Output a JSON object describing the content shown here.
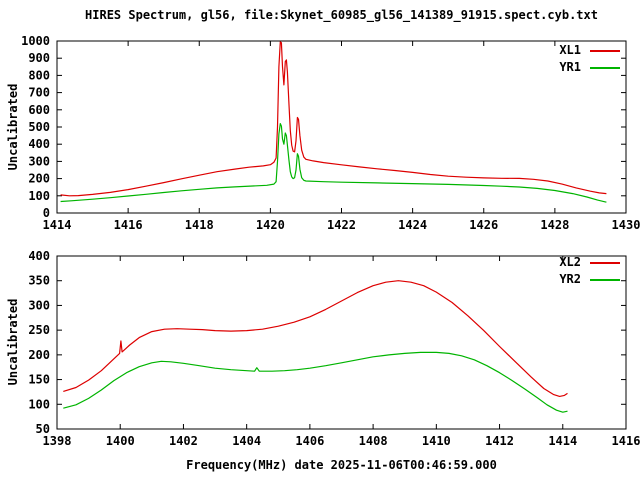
{
  "colors": {
    "axis": "#000000",
    "background": "#ffffff",
    "series_red": "#dd0000",
    "series_green": "#00b400"
  },
  "chart_data": {
    "type": "line",
    "title": "HIRES Spectrum, gl56, file:Skynet_60985_gl56_141389_91915.spect.cyb.txt",
    "xlabel": "Frequency(MHz) date 2025-11-06T00:46:59.000",
    "grid": false,
    "legend_position": "top-right-inside",
    "panels": [
      {
        "name": "top-spectrum",
        "ylabel": "Uncalibrated",
        "xlim": [
          1414,
          1430
        ],
        "ylim": [
          0,
          1000
        ],
        "xticks": [
          1414,
          1416,
          1418,
          1420,
          1422,
          1424,
          1426,
          1428,
          1430
        ],
        "yticks": [
          0,
          100,
          200,
          300,
          400,
          500,
          600,
          700,
          800,
          900,
          1000
        ],
        "legend": [
          {
            "name": "XL1",
            "color": "#dd0000"
          },
          {
            "name": "YR1",
            "color": "#00b400"
          }
        ],
        "series": [
          {
            "name": "XL1",
            "color": "#dd0000",
            "points": [
              [
                1414.1,
                105
              ],
              [
                1414.35,
                100
              ],
              [
                1414.6,
                101
              ],
              [
                1415.0,
                108
              ],
              [
                1415.5,
                120
              ],
              [
                1416.0,
                136
              ],
              [
                1416.5,
                156
              ],
              [
                1417.0,
                177
              ],
              [
                1417.5,
                199
              ],
              [
                1418.0,
                220
              ],
              [
                1418.5,
                240
              ],
              [
                1419.0,
                255
              ],
              [
                1419.4,
                266
              ],
              [
                1419.8,
                274
              ],
              [
                1420.0,
                281
              ],
              [
                1420.1,
                295
              ],
              [
                1420.16,
                320
              ],
              [
                1420.2,
                500
              ],
              [
                1420.24,
                850
              ],
              [
                1420.28,
                995
              ],
              [
                1420.31,
                990
              ],
              [
                1420.34,
                850
              ],
              [
                1420.38,
                745
              ],
              [
                1420.42,
                880
              ],
              [
                1420.45,
                890
              ],
              [
                1420.48,
                820
              ],
              [
                1420.52,
                640
              ],
              [
                1420.56,
                480
              ],
              [
                1420.6,
                395
              ],
              [
                1420.64,
                360
              ],
              [
                1420.68,
                355
              ],
              [
                1420.72,
                420
              ],
              [
                1420.76,
                555
              ],
              [
                1420.79,
                545
              ],
              [
                1420.83,
                450
              ],
              [
                1420.88,
                365
              ],
              [
                1420.94,
                325
              ],
              [
                1421.0,
                312
              ],
              [
                1421.2,
                303
              ],
              [
                1421.5,
                293
              ],
              [
                1422.0,
                280
              ],
              [
                1422.5,
                268
              ],
              [
                1423.0,
                257
              ],
              [
                1423.5,
                247
              ],
              [
                1424.0,
                236
              ],
              [
                1424.5,
                224
              ],
              [
                1425.0,
                214
              ],
              [
                1425.5,
                208
              ],
              [
                1426.0,
                204
              ],
              [
                1426.5,
                202
              ],
              [
                1427.0,
                201
              ],
              [
                1427.4,
                196
              ],
              [
                1427.8,
                186
              ],
              [
                1428.2,
                168
              ],
              [
                1428.6,
                146
              ],
              [
                1429.0,
                127
              ],
              [
                1429.25,
                117
              ],
              [
                1429.45,
                113
              ]
            ]
          },
          {
            "name": "YR1",
            "color": "#00b400",
            "points": [
              [
                1414.1,
                67
              ],
              [
                1414.4,
                71
              ],
              [
                1415.0,
                80
              ],
              [
                1415.5,
                89
              ],
              [
                1416.0,
                99
              ],
              [
                1416.5,
                109
              ],
              [
                1417.0,
                119
              ],
              [
                1417.5,
                129
              ],
              [
                1418.0,
                138
              ],
              [
                1418.5,
                146
              ],
              [
                1419.0,
                152
              ],
              [
                1419.5,
                157
              ],
              [
                1419.9,
                161
              ],
              [
                1420.1,
                168
              ],
              [
                1420.16,
                182
              ],
              [
                1420.2,
                300
              ],
              [
                1420.24,
                460
              ],
              [
                1420.28,
                520
              ],
              [
                1420.31,
                505
              ],
              [
                1420.34,
                430
              ],
              [
                1420.38,
                400
              ],
              [
                1420.42,
                465
              ],
              [
                1420.45,
                450
              ],
              [
                1420.48,
                395
              ],
              [
                1420.52,
                310
              ],
              [
                1420.56,
                240
              ],
              [
                1420.6,
                210
              ],
              [
                1420.64,
                200
              ],
              [
                1420.68,
                205
              ],
              [
                1420.72,
                250
              ],
              [
                1420.76,
                345
              ],
              [
                1420.79,
                330
              ],
              [
                1420.83,
                255
              ],
              [
                1420.88,
                205
              ],
              [
                1420.94,
                190
              ],
              [
                1421.0,
                186
              ],
              [
                1421.5,
                182
              ],
              [
                1422.0,
                179
              ],
              [
                1423.0,
                175
              ],
              [
                1424.0,
                171
              ],
              [
                1425.0,
                166
              ],
              [
                1426.0,
                160
              ],
              [
                1426.5,
                156
              ],
              [
                1427.0,
                151
              ],
              [
                1427.5,
                143
              ],
              [
                1428.0,
                131
              ],
              [
                1428.5,
                113
              ],
              [
                1428.9,
                93
              ],
              [
                1429.2,
                75
              ],
              [
                1429.45,
                63
              ]
            ]
          }
        ]
      },
      {
        "name": "bottom-spectrum",
        "ylabel": "Uncalibrated",
        "xlim": [
          1398,
          1416
        ],
        "ylim": [
          50,
          400
        ],
        "xticks": [
          1398,
          1400,
          1402,
          1404,
          1406,
          1408,
          1410,
          1412,
          1414,
          1416
        ],
        "yticks": [
          50,
          100,
          150,
          200,
          250,
          300,
          350,
          400
        ],
        "legend": [
          {
            "name": "XL2",
            "color": "#dd0000"
          },
          {
            "name": "YR2",
            "color": "#00b400"
          }
        ],
        "series": [
          {
            "name": "XL2",
            "color": "#dd0000",
            "points": [
              [
                1398.2,
                126
              ],
              [
                1398.6,
                134
              ],
              [
                1399.0,
                149
              ],
              [
                1399.4,
                168
              ],
              [
                1399.8,
                192
              ],
              [
                1399.98,
                203
              ],
              [
                1400.02,
                228
              ],
              [
                1400.06,
                206
              ],
              [
                1400.3,
                220
              ],
              [
                1400.6,
                235
              ],
              [
                1401.0,
                247
              ],
              [
                1401.4,
                252
              ],
              [
                1401.8,
                253
              ],
              [
                1402.2,
                252
              ],
              [
                1402.6,
                251
              ],
              [
                1403.0,
                249
              ],
              [
                1403.5,
                248
              ],
              [
                1404.0,
                249
              ],
              [
                1404.5,
                252
              ],
              [
                1405.0,
                258
              ],
              [
                1405.5,
                266
              ],
              [
                1406.0,
                277
              ],
              [
                1406.5,
                292
              ],
              [
                1407.0,
                309
              ],
              [
                1407.5,
                326
              ],
              [
                1408.0,
                340
              ],
              [
                1408.4,
                347
              ],
              [
                1408.8,
                350
              ],
              [
                1409.2,
                347
              ],
              [
                1409.6,
                340
              ],
              [
                1410.0,
                327
              ],
              [
                1410.5,
                306
              ],
              [
                1411.0,
                279
              ],
              [
                1411.5,
                249
              ],
              [
                1412.0,
                217
              ],
              [
                1412.5,
                186
              ],
              [
                1413.0,
                155
              ],
              [
                1413.4,
                132
              ],
              [
                1413.7,
                120
              ],
              [
                1413.9,
                116
              ],
              [
                1414.05,
                118
              ],
              [
                1414.15,
                122
              ]
            ]
          },
          {
            "name": "YR2",
            "color": "#00b400",
            "points": [
              [
                1398.2,
                92
              ],
              [
                1398.6,
                99
              ],
              [
                1399.0,
                112
              ],
              [
                1399.4,
                129
              ],
              [
                1399.8,
                148
              ],
              [
                1400.2,
                164
              ],
              [
                1400.6,
                176
              ],
              [
                1401.0,
                184
              ],
              [
                1401.3,
                187
              ],
              [
                1401.6,
                186
              ],
              [
                1402.0,
                183
              ],
              [
                1402.5,
                178
              ],
              [
                1403.0,
                173
              ],
              [
                1403.5,
                170
              ],
              [
                1404.0,
                168
              ],
              [
                1404.25,
                167
              ],
              [
                1404.32,
                174
              ],
              [
                1404.4,
                167
              ],
              [
                1404.8,
                167
              ],
              [
                1405.2,
                168
              ],
              [
                1405.6,
                170
              ],
              [
                1406.0,
                173
              ],
              [
                1406.5,
                178
              ],
              [
                1407.0,
                184
              ],
              [
                1407.5,
                190
              ],
              [
                1408.0,
                196
              ],
              [
                1408.5,
                200
              ],
              [
                1409.0,
                203
              ],
              [
                1409.5,
                205
              ],
              [
                1410.0,
                205
              ],
              [
                1410.4,
                203
              ],
              [
                1410.8,
                198
              ],
              [
                1411.2,
                190
              ],
              [
                1411.6,
                178
              ],
              [
                1412.0,
                164
              ],
              [
                1412.4,
                148
              ],
              [
                1412.8,
                131
              ],
              [
                1413.2,
                113
              ],
              [
                1413.5,
                99
              ],
              [
                1413.8,
                88
              ],
              [
                1414.0,
                84
              ],
              [
                1414.15,
                86
              ]
            ]
          }
        ]
      }
    ]
  }
}
